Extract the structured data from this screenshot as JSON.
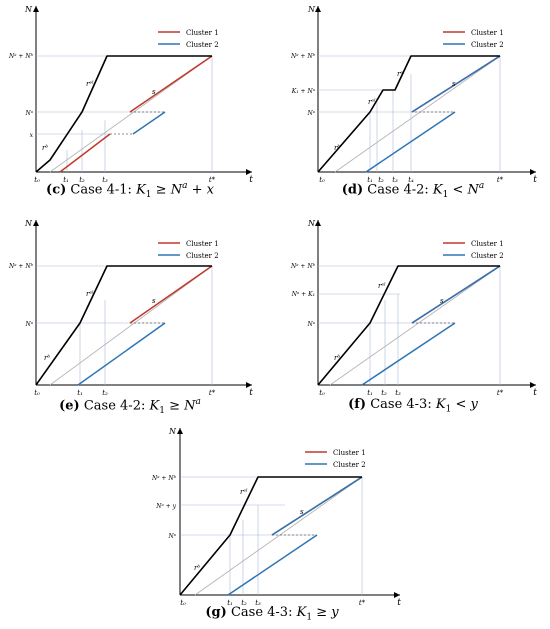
{
  "legend": {
    "cluster1": "Cluster 1",
    "cluster2": "Cluster 2"
  },
  "colors": {
    "cluster1": "#c0392b",
    "cluster2": "#2e75b6",
    "axis": "#000000",
    "guide": "#aab8d8",
    "grey": "#b5b5b5"
  },
  "panels": [
    {
      "id": "c",
      "caption": {
        "tag": "(c)",
        "text": "Case 4-1:"
      },
      "ylabels": [
        "N",
        "Nᵃ + Nᵇ",
        "Nᵃ",
        "x"
      ],
      "xlabels": [
        "t",
        "t₀",
        "t₁",
        "t₂",
        "t₃",
        "t*"
      ],
      "slopes": [
        "rᵇ",
        "rᵉˡ",
        "s"
      ]
    },
    {
      "id": "d",
      "caption": {
        "tag": "(d)",
        "text": "Case 4-2:"
      },
      "ylabels": [
        "N",
        "Nᵃ + Nᵇ",
        "K₁ + Nᵃ",
        "Nᵃ"
      ],
      "xlabels": [
        "t",
        "t₀",
        "t₁",
        "t₂",
        "t₃",
        "t₄",
        "t*"
      ],
      "slopes": [
        "rᵇ",
        "rᵉˡ",
        "rᵉˡ",
        "s"
      ]
    },
    {
      "id": "e",
      "caption": {
        "tag": "(e)",
        "text": "Case 4-2:"
      },
      "ylabels": [
        "N",
        "Nᵃ + Nᵇ",
        "Nᵃ"
      ],
      "xlabels": [
        "t",
        "t₀",
        "t₁",
        "t₂",
        "t*"
      ],
      "slopes": [
        "rᵇ",
        "rᵉˡ",
        "s"
      ]
    },
    {
      "id": "f",
      "caption": {
        "tag": "(f)",
        "text": "Case 4-3:"
      },
      "ylabels": [
        "N",
        "Nᵃ + Nᵇ",
        "Nᵃ + K₁",
        "Nᵃ"
      ],
      "xlabels": [
        "t",
        "t₀",
        "t₁",
        "t₂",
        "t₃",
        "t*"
      ],
      "slopes": [
        "rᵇ",
        "rᵉˡ",
        "s"
      ]
    },
    {
      "id": "g",
      "caption": {
        "tag": "(g)",
        "text": "Case 4-3:"
      },
      "ylabels": [
        "N",
        "Nᵃ + Nᵇ",
        "Nᵃ + y",
        "Nᵃ"
      ],
      "xlabels": [
        "t",
        "t₀",
        "t₁",
        "t₂",
        "t₃",
        "t*"
      ],
      "slopes": [
        "rᵇ",
        "rᵉˡ",
        "s"
      ]
    }
  ]
}
